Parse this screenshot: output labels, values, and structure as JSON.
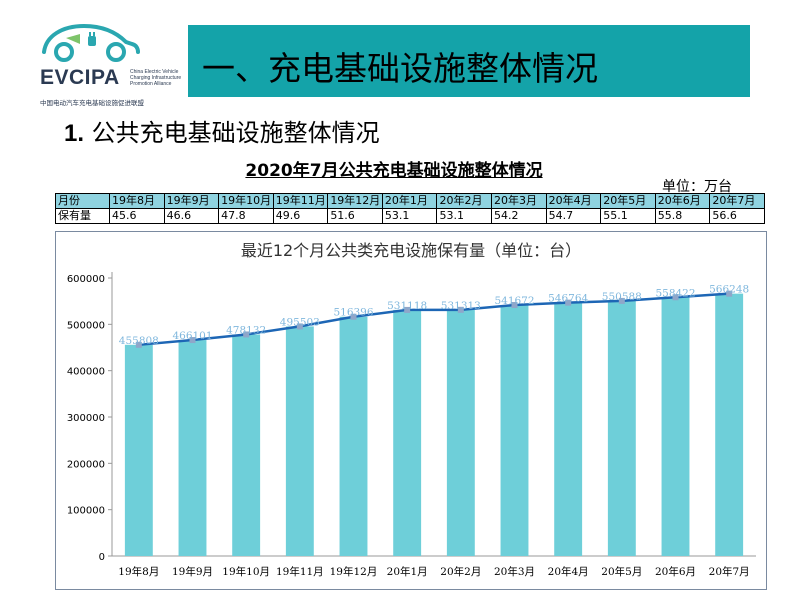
{
  "logo": {
    "name": "EVCIPA",
    "english_lines": [
      "China Electric Vehicle",
      "Charging Infrastructure",
      "Promotion Alliance"
    ],
    "chinese": "中国电动汽车充电基础设施促进联盟"
  },
  "banner": {
    "title": "一、充电基础设施整体情况"
  },
  "subhead": {
    "number": "1.",
    "text": "公共充电基础设施整体情况"
  },
  "table": {
    "title": "2020年7月公共充电基础设施整体情况",
    "unit": "单位：万台",
    "row_headers": [
      "月份",
      "保有量"
    ],
    "months": [
      "19年8月",
      "19年9月",
      "19年10月",
      "19年11月",
      "19年12月",
      "20年1月",
      "20年2月",
      "20年3月",
      "20年4月",
      "20年5月",
      "20年6月",
      "20年7月"
    ],
    "values": [
      "45.6",
      "46.6",
      "47.8",
      "49.6",
      "51.6",
      "53.1",
      "53.1",
      "54.2",
      "54.7",
      "55.1",
      "55.8",
      "56.6"
    ]
  },
  "chart_data": {
    "type": "bar",
    "title": "最近12个月公共类充电设施保有量（单位：台）",
    "categories": [
      "19年8月",
      "19年9月",
      "19年10月",
      "19年11月",
      "19年12月",
      "20年1月",
      "20年2月",
      "20年3月",
      "20年4月",
      "20年5月",
      "20年6月",
      "20年7月"
    ],
    "values": [
      455808,
      466101,
      478132,
      495503,
      516396,
      531118,
      531313,
      541672,
      546764,
      550588,
      558422,
      566248
    ],
    "overlay_line": true,
    "ylim": [
      0,
      600000
    ],
    "yticks": [
      0,
      100000,
      200000,
      300000,
      400000,
      500000,
      600000
    ],
    "grid": false,
    "legend": "none",
    "colors": {
      "bar": "#6ecfd9",
      "line": "#1d66b5",
      "marker": "#8fa6c9",
      "label": "#7fb7dd"
    }
  }
}
